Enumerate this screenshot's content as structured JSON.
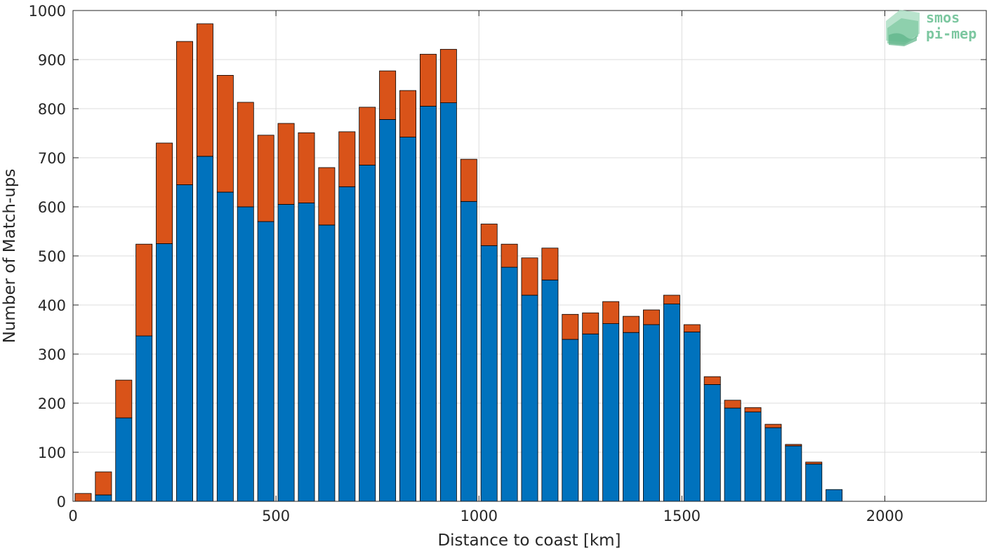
{
  "chart_data": {
    "type": "bar",
    "stacked": true,
    "xlabel": "Distance to coast [km]",
    "ylabel": "Number of Match-ups",
    "xlim": [
      0,
      2250
    ],
    "ylim": [
      0,
      1000
    ],
    "x_ticks": [
      0,
      500,
      1000,
      1500,
      2000
    ],
    "y_ticks": [
      0,
      100,
      200,
      300,
      400,
      500,
      600,
      700,
      800,
      900,
      1000
    ],
    "grid": true,
    "bin_width": 50,
    "x": [
      25,
      75,
      125,
      175,
      225,
      275,
      325,
      375,
      425,
      475,
      525,
      575,
      625,
      675,
      725,
      775,
      825,
      875,
      925,
      975,
      1025,
      1075,
      1125,
      1175,
      1225,
      1275,
      1325,
      1375,
      1425,
      1475,
      1525,
      1575,
      1625,
      1675,
      1725,
      1775,
      1825,
      1875
    ],
    "series": [
      {
        "color": "#0072BD",
        "values": [
          0,
          13,
          170,
          337,
          525,
          645,
          703,
          630,
          600,
          570,
          605,
          608,
          563,
          641,
          685,
          778,
          742,
          805,
          812,
          611,
          521,
          477,
          420,
          451,
          330,
          341,
          362,
          344,
          360,
          402,
          345,
          238,
          190,
          182,
          150,
          113,
          76,
          24
        ]
      },
      {
        "color": "#D95319",
        "values": [
          16,
          47,
          77,
          187,
          205,
          292,
          270,
          238,
          213,
          176,
          165,
          143,
          117,
          112,
          118,
          99,
          95,
          106,
          109,
          86,
          44,
          47,
          76,
          65,
          51,
          43,
          45,
          33,
          30,
          18,
          15,
          16,
          16,
          9,
          7,
          3,
          4,
          0
        ]
      }
    ]
  },
  "logo": {
    "line1": "smos",
    "line2": "pi-mep",
    "color": "#7cc7a0"
  }
}
